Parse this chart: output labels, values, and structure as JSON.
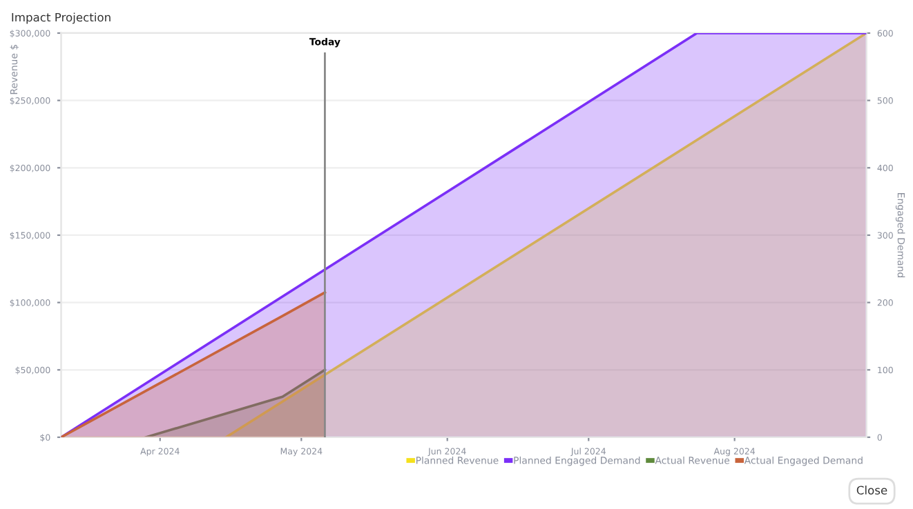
{
  "chart_data": {
    "type": "area",
    "title": "Impact Projection",
    "ylabel": "Revenue $",
    "y2label": "Engaged Demand",
    "xlim": [
      "2024-03-11",
      "2024-08-29"
    ],
    "xticks": [
      {
        "value": "2024-04-01",
        "label": "Apr 2024"
      },
      {
        "value": "2024-05-01",
        "label": "May 2024"
      },
      {
        "value": "2024-06-01",
        "label": "Jun 2024"
      },
      {
        "value": "2024-07-01",
        "label": "Jul 2024"
      },
      {
        "value": "2024-08-01",
        "label": "Aug 2024"
      }
    ],
    "ylim": [
      0,
      300000
    ],
    "yticks": [
      {
        "value": 0,
        "label": "$0"
      },
      {
        "value": 50000,
        "label": "$50,000"
      },
      {
        "value": 100000,
        "label": "$100,000"
      },
      {
        "value": 150000,
        "label": "$150,000"
      },
      {
        "value": 200000,
        "label": "$200,000"
      },
      {
        "value": 250000,
        "label": "$250,000"
      },
      {
        "value": 300000,
        "label": "$300,000"
      }
    ],
    "y2lim": [
      0,
      600
    ],
    "y2ticks": [
      0,
      100,
      200,
      300,
      400,
      500,
      600
    ],
    "series": [
      {
        "name": "Planned Revenue",
        "color": "#f5e11c",
        "x": [
          "2024-04-15",
          "2024-08-29"
        ],
        "values": [
          0,
          300000
        ]
      },
      {
        "name": "Planned Engaged Demand",
        "color": "#7b2ff7",
        "axis": "y2",
        "x": [
          "2024-03-11",
          "2024-07-24",
          "2024-08-29"
        ],
        "values": [
          0,
          600,
          600
        ]
      },
      {
        "name": "Actual Revenue",
        "color": "#5f8a3c",
        "x": [
          "2024-03-29",
          "2024-04-27",
          "2024-05-06"
        ],
        "values": [
          0,
          30000,
          50000
        ]
      },
      {
        "name": "Actual Engaged Demand",
        "color": "#c8643c",
        "axis": "y2",
        "x": [
          "2024-03-11",
          "2024-04-27",
          "2024-05-06"
        ],
        "values": [
          0,
          180,
          215
        ]
      }
    ],
    "ref_lines": [
      {
        "axis": "x",
        "value": "2024-05-06",
        "label": "Today",
        "color": "#888888"
      }
    ],
    "grid": "y",
    "legend": "bottom right",
    "annotations": [
      "Close"
    ]
  }
}
